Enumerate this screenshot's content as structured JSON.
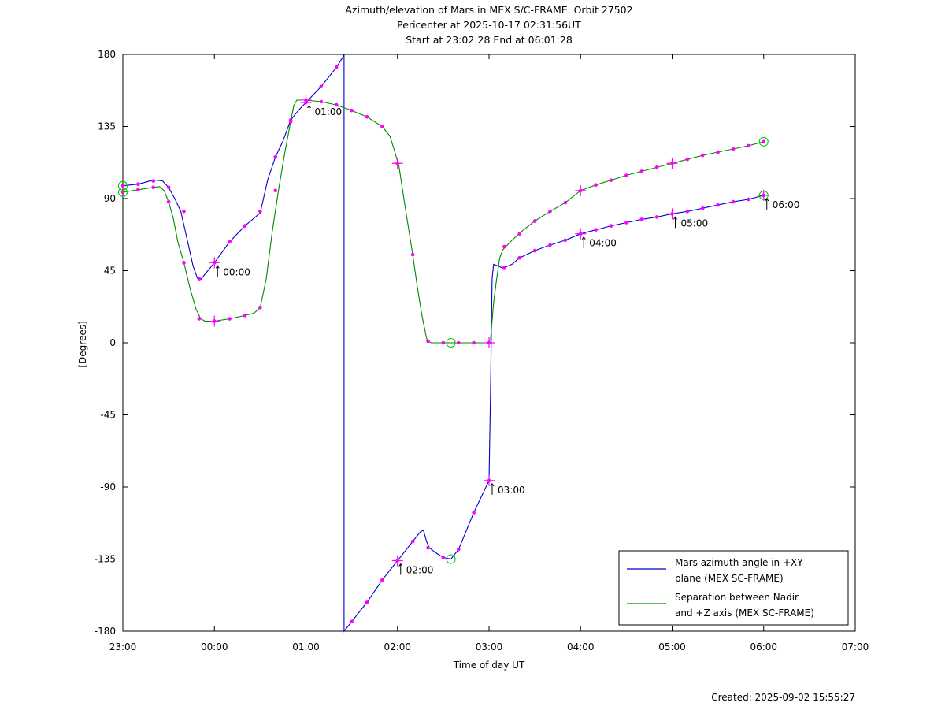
{
  "chart_data": {
    "type": "line",
    "title_lines": [
      "Azimuth/elevation of Mars in MEX S/C-FRAME.  Orbit 27502",
      "Pericenter at 2025-10-17 02:31:56UT",
      "Start at 23:02:28 End at 06:01:28"
    ],
    "xlabel": "Time of day UT",
    "ylabel": "[Degrees]",
    "xlim": [
      0,
      480
    ],
    "ylim": [
      -180,
      180
    ],
    "x_ticks": [
      {
        "v": 0,
        "label": "23:00"
      },
      {
        "v": 60,
        "label": "00:00"
      },
      {
        "v": 120,
        "label": "01:00"
      },
      {
        "v": 180,
        "label": "02:00"
      },
      {
        "v": 240,
        "label": "03:00"
      },
      {
        "v": 300,
        "label": "04:00"
      },
      {
        "v": 360,
        "label": "05:00"
      },
      {
        "v": 420,
        "label": "06:00"
      },
      {
        "v": 480,
        "label": "07:00"
      }
    ],
    "y_ticks": [
      {
        "v": 180,
        "label": "180"
      },
      {
        "v": 135,
        "label": "135"
      },
      {
        "v": 90,
        "label": "90"
      },
      {
        "v": 45,
        "label": "45"
      },
      {
        "v": 0,
        "label": "0"
      },
      {
        "v": -45,
        "label": "-45"
      },
      {
        "v": -90,
        "label": "-90"
      },
      {
        "v": -135,
        "label": "-135"
      },
      {
        "v": -180,
        "label": "-180"
      }
    ],
    "grid": false,
    "legend_position": "bottom-right",
    "series": [
      {
        "name": "Mars azimuth angle in +XY plane (MEX SC-FRAME)",
        "legend_lines": [
          "Mars azimuth angle in +XY",
          "plane (MEX SC-FRAME)"
        ],
        "color": "#0000cc",
        "points": [
          [
            0,
            98
          ],
          [
            10,
            99
          ],
          [
            18,
            101
          ],
          [
            22,
            101.5
          ],
          [
            26,
            101
          ],
          [
            30,
            97
          ],
          [
            34,
            90
          ],
          [
            38,
            82
          ],
          [
            42,
            65
          ],
          [
            46,
            48
          ],
          [
            49,
            40
          ],
          [
            51,
            39.5
          ],
          [
            54,
            43
          ],
          [
            60,
            50
          ],
          [
            70,
            63
          ],
          [
            80,
            73
          ],
          [
            90,
            81
          ],
          [
            95,
            102
          ],
          [
            100,
            116
          ],
          [
            105,
            126
          ],
          [
            110,
            139
          ],
          [
            115,
            145
          ],
          [
            120,
            150
          ],
          [
            130,
            160
          ],
          [
            140,
            172
          ],
          [
            144,
            178
          ],
          [
            145,
            180
          ],
          [
            145,
            -180
          ],
          [
            150,
            -174
          ],
          [
            160,
            -162
          ],
          [
            170,
            -148
          ],
          [
            180,
            -136
          ],
          [
            190,
            -124
          ],
          [
            195,
            -118
          ],
          [
            197,
            -117
          ],
          [
            199,
            -124
          ],
          [
            201,
            -128
          ],
          [
            205,
            -131
          ],
          [
            210,
            -134
          ],
          [
            215,
            -135
          ],
          [
            220,
            -129
          ],
          [
            230,
            -106
          ],
          [
            240,
            -86
          ],
          [
            241,
            -30
          ],
          [
            242,
            40
          ],
          [
            243,
            49
          ],
          [
            247,
            47.5
          ],
          [
            249,
            46.5
          ],
          [
            255,
            49
          ],
          [
            260,
            53
          ],
          [
            270,
            57.5
          ],
          [
            280,
            61
          ],
          [
            290,
            64
          ],
          [
            300,
            68
          ],
          [
            310,
            70.5
          ],
          [
            320,
            73
          ],
          [
            330,
            75
          ],
          [
            340,
            77
          ],
          [
            350,
            78.5
          ],
          [
            360,
            80.5
          ],
          [
            370,
            82
          ],
          [
            380,
            84
          ],
          [
            390,
            86
          ],
          [
            400,
            88
          ],
          [
            410,
            89.5
          ],
          [
            420,
            92
          ]
        ]
      },
      {
        "name": "Separation between Nadir and +Z axis (MEX SC-FRAME)",
        "legend_lines": [
          "Separation between Nadir",
          "and +Z axis (MEX SC-FRAME)"
        ],
        "color": "#008800",
        "points": [
          [
            0,
            94
          ],
          [
            10,
            95.5
          ],
          [
            20,
            97
          ],
          [
            24,
            97.5
          ],
          [
            27,
            95
          ],
          [
            30,
            88
          ],
          [
            33,
            78
          ],
          [
            36,
            63
          ],
          [
            40,
            50
          ],
          [
            44,
            34
          ],
          [
            48,
            21
          ],
          [
            51,
            15
          ],
          [
            54,
            13.5
          ],
          [
            60,
            13.5
          ],
          [
            70,
            15
          ],
          [
            80,
            17
          ],
          [
            86,
            18.5
          ],
          [
            90,
            22
          ],
          [
            94,
            40
          ],
          [
            98,
            70
          ],
          [
            102,
            95
          ],
          [
            106,
            118
          ],
          [
            110,
            138
          ],
          [
            112,
            148
          ],
          [
            114,
            151.5
          ],
          [
            120,
            151.5
          ],
          [
            125,
            151
          ],
          [
            130,
            150.5
          ],
          [
            140,
            148.5
          ],
          [
            150,
            145
          ],
          [
            160,
            141
          ],
          [
            170,
            135
          ],
          [
            175,
            129
          ],
          [
            178,
            120
          ],
          [
            181,
            110
          ],
          [
            185,
            85
          ],
          [
            190,
            55
          ],
          [
            193,
            35
          ],
          [
            196,
            17
          ],
          [
            199,
            3
          ],
          [
            200,
            1
          ],
          [
            202,
            0
          ],
          [
            210,
            0
          ],
          [
            220,
            0
          ],
          [
            232,
            0
          ],
          [
            239,
            0
          ],
          [
            241,
            2
          ],
          [
            243,
            25
          ],
          [
            245,
            40
          ],
          [
            247,
            53
          ],
          [
            249,
            58
          ],
          [
            251,
            60
          ],
          [
            255,
            64
          ],
          [
            262,
            70
          ],
          [
            270,
            76
          ],
          [
            280,
            82
          ],
          [
            290,
            87.5
          ],
          [
            300,
            95
          ],
          [
            310,
            98.5
          ],
          [
            320,
            101.5
          ],
          [
            330,
            104.5
          ],
          [
            340,
            107
          ],
          [
            350,
            109.5
          ],
          [
            360,
            112
          ],
          [
            370,
            114.5
          ],
          [
            380,
            117
          ],
          [
            390,
            119
          ],
          [
            400,
            121
          ],
          [
            410,
            123
          ],
          [
            420,
            125.5
          ]
        ]
      }
    ],
    "markers": {
      "marker_color": "#ff00ff",
      "dots": [
        [
          0,
          98
        ],
        [
          10,
          99
        ],
        [
          20,
          101
        ],
        [
          30,
          97
        ],
        [
          40,
          82
        ],
        [
          50,
          40
        ],
        [
          60,
          50
        ],
        [
          70,
          63
        ],
        [
          80,
          73
        ],
        [
          90,
          82
        ],
        [
          100,
          116
        ],
        [
          110,
          139
        ],
        [
          120,
          150
        ],
        [
          130,
          160
        ],
        [
          140,
          172
        ],
        [
          150,
          -174
        ],
        [
          160,
          -162
        ],
        [
          170,
          -148
        ],
        [
          180,
          -136
        ],
        [
          190,
          -124
        ],
        [
          200,
          -128
        ],
        [
          210,
          -134
        ],
        [
          220,
          -129
        ],
        [
          230,
          -106
        ],
        [
          240,
          -86
        ],
        [
          250,
          47
        ],
        [
          260,
          53
        ],
        [
          270,
          57.5
        ],
        [
          280,
          61
        ],
        [
          290,
          64
        ],
        [
          300,
          68
        ],
        [
          310,
          70.5
        ],
        [
          320,
          73
        ],
        [
          330,
          75
        ],
        [
          340,
          77
        ],
        [
          350,
          78.5
        ],
        [
          360,
          80.5
        ],
        [
          370,
          82
        ],
        [
          380,
          84
        ],
        [
          390,
          86
        ],
        [
          400,
          88
        ],
        [
          410,
          89.5
        ],
        [
          420,
          92
        ],
        [
          0,
          94
        ],
        [
          10,
          95.5
        ],
        [
          20,
          97
        ],
        [
          30,
          88
        ],
        [
          40,
          50
        ],
        [
          50,
          15
        ],
        [
          60,
          13.5
        ],
        [
          70,
          15
        ],
        [
          80,
          17
        ],
        [
          90,
          22
        ],
        [
          100,
          95
        ],
        [
          110,
          138
        ],
        [
          120,
          151.5
        ],
        [
          130,
          150.5
        ],
        [
          140,
          148.5
        ],
        [
          150,
          145
        ],
        [
          160,
          141
        ],
        [
          170,
          135
        ],
        [
          180,
          112
        ],
        [
          190,
          55
        ],
        [
          200,
          1
        ],
        [
          210,
          0
        ],
        [
          220,
          0
        ],
        [
          230,
          0
        ],
        [
          240,
          0
        ],
        [
          250,
          60
        ],
        [
          260,
          68
        ],
        [
          270,
          76
        ],
        [
          280,
          82
        ],
        [
          290,
          87.5
        ],
        [
          300,
          95
        ],
        [
          310,
          98.5
        ],
        [
          320,
          101.5
        ],
        [
          330,
          104.5
        ],
        [
          340,
          107
        ],
        [
          350,
          109.5
        ],
        [
          360,
          112
        ],
        [
          370,
          114.5
        ],
        [
          380,
          117
        ],
        [
          390,
          119
        ],
        [
          400,
          121
        ],
        [
          410,
          123
        ],
        [
          420,
          125.5
        ]
      ],
      "crosses": [
        [
          60,
          50
        ],
        [
          60,
          13.5
        ],
        [
          120,
          150
        ],
        [
          120,
          151.5
        ],
        [
          180,
          -136
        ],
        [
          180,
          112
        ],
        [
          240,
          -86
        ],
        [
          240,
          0
        ],
        [
          300,
          68
        ],
        [
          300,
          95
        ],
        [
          360,
          80.5
        ],
        [
          360,
          112
        ],
        [
          420,
          92
        ]
      ],
      "circles_color": "#00cc00",
      "circles": [
        [
          0,
          98
        ],
        [
          0,
          94
        ],
        [
          215,
          -135
        ],
        [
          215,
          0
        ],
        [
          420,
          92
        ],
        [
          420,
          125.5
        ]
      ]
    },
    "time_annotations": [
      {
        "x": 60,
        "y": 50,
        "label": "00:00"
      },
      {
        "x": 120,
        "y": 150,
        "label": "01:00"
      },
      {
        "x": 180,
        "y": -136,
        "label": "02:00"
      },
      {
        "x": 240,
        "y": -86,
        "label": "03:00"
      },
      {
        "x": 300,
        "y": 68,
        "label": "04:00"
      },
      {
        "x": 360,
        "y": 80.5,
        "label": "05:00"
      },
      {
        "x": 420,
        "y": 92,
        "label": "06:00"
      }
    ]
  },
  "footer": {
    "created": "Created: 2025-09-02 15:55:27"
  }
}
